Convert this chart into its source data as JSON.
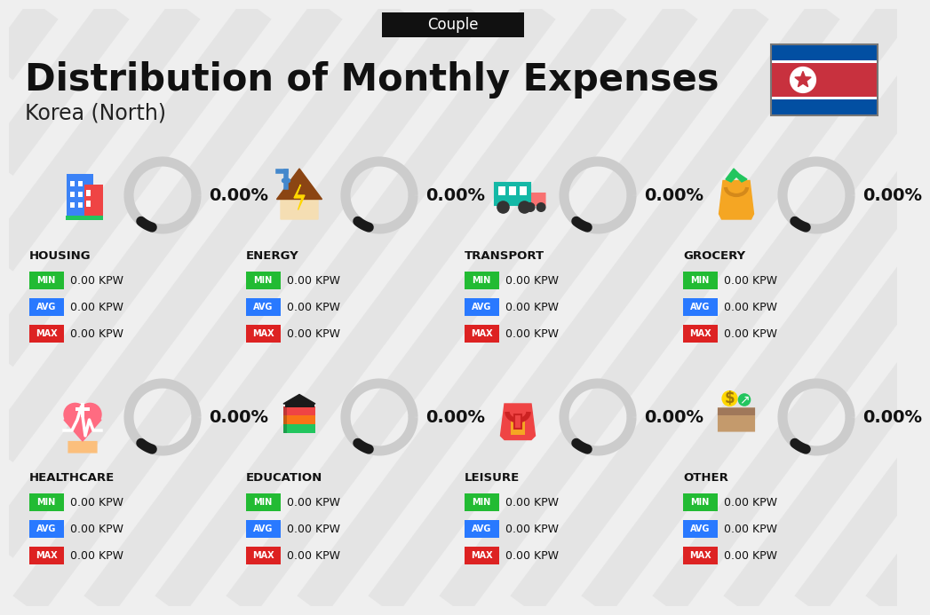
{
  "title": "Distribution of Monthly Expenses",
  "subtitle": "Korea (North)",
  "tab_label": "Couple",
  "bg_color": "#efefef",
  "categories": [
    {
      "name": "HOUSING",
      "row": 0,
      "col": 0,
      "pct": "0.00%",
      "min": "0.00 KPW",
      "avg": "0.00 KPW",
      "max": "0.00 KPW"
    },
    {
      "name": "ENERGY",
      "row": 0,
      "col": 1,
      "pct": "0.00%",
      "min": "0.00 KPW",
      "avg": "0.00 KPW",
      "max": "0.00 KPW"
    },
    {
      "name": "TRANSPORT",
      "row": 0,
      "col": 2,
      "pct": "0.00%",
      "min": "0.00 KPW",
      "avg": "0.00 KPW",
      "max": "0.00 KPW"
    },
    {
      "name": "GROCERY",
      "row": 0,
      "col": 3,
      "pct": "0.00%",
      "min": "0.00 KPW",
      "avg": "0.00 KPW",
      "max": "0.00 KPW"
    },
    {
      "name": "HEALTHCARE",
      "row": 1,
      "col": 0,
      "pct": "0.00%",
      "min": "0.00 KPW",
      "avg": "0.00 KPW",
      "max": "0.00 KPW"
    },
    {
      "name": "EDUCATION",
      "row": 1,
      "col": 1,
      "pct": "0.00%",
      "min": "0.00 KPW",
      "avg": "0.00 KPW",
      "max": "0.00 KPW"
    },
    {
      "name": "LEISURE",
      "row": 1,
      "col": 2,
      "pct": "0.00%",
      "min": "0.00 KPW",
      "avg": "0.00 KPW",
      "max": "0.00 KPW"
    },
    {
      "name": "OTHER",
      "row": 1,
      "col": 3,
      "pct": "0.00%",
      "min": "0.00 KPW",
      "avg": "0.00 KPW",
      "max": "0.00 KPW"
    }
  ],
  "min_color": "#22bb33",
  "avg_color": "#2979ff",
  "max_color": "#dd2222",
  "title_color": "#111111",
  "subtitle_color": "#222222",
  "tab_bg": "#111111",
  "tab_fg": "#ffffff",
  "donut_bg": "#cccccc",
  "donut_filled": "#1a1a1a",
  "pct_color": "#111111",
  "label_color": "#111111",
  "stripe_color": "#e0e0e0",
  "flag_blue": "#024FA2",
  "flag_red": "#C8313E"
}
